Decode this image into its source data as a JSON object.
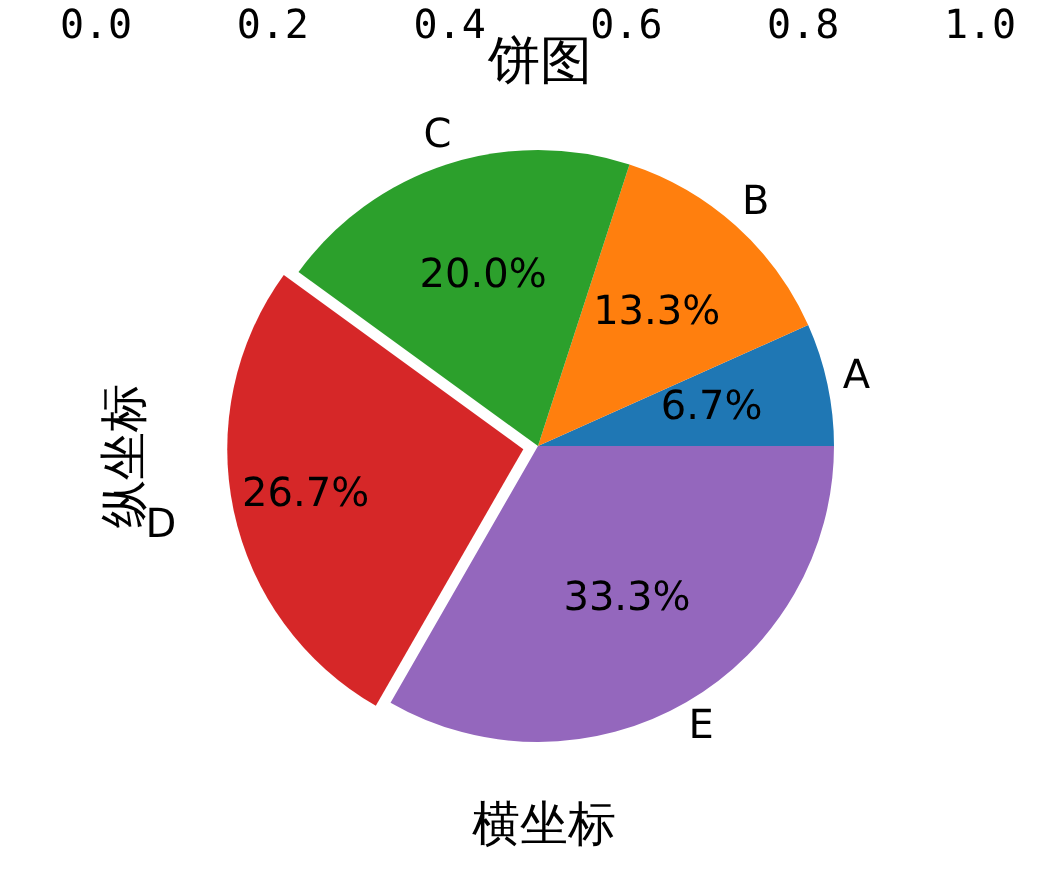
{
  "chart_data": {
    "type": "pie",
    "title": "饼图",
    "xlabel": "横坐标",
    "ylabel": "纵坐标",
    "categories": [
      "A",
      "B",
      "C",
      "D",
      "E"
    ],
    "values": [
      6.7,
      13.3,
      20.0,
      26.7,
      33.3
    ],
    "colors": [
      "#1f77b4",
      "#ff7f0e",
      "#2ca02c",
      "#d62728",
      "#9467bd"
    ],
    "value_labels": [
      "6.7%",
      "13.3%",
      "20.0%",
      "26.7%",
      "33.3%"
    ],
    "annotations": [
      "0.0",
      "0.2",
      "0.4",
      "0.6",
      "0.8",
      "1.0"
    ],
    "legend": false
  }
}
